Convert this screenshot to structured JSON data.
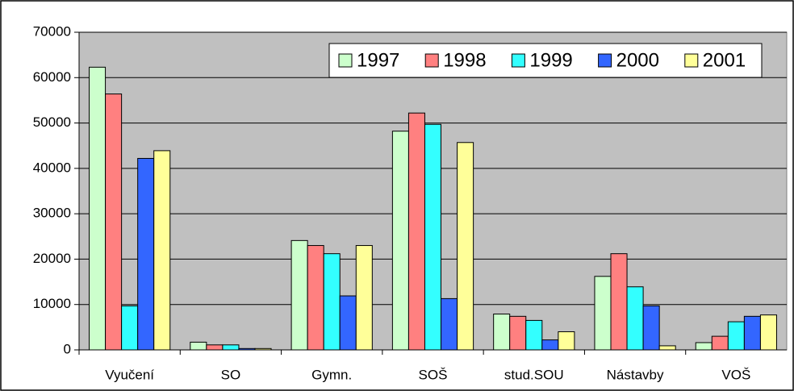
{
  "chart_data": {
    "type": "bar",
    "categories": [
      "Vyučení",
      "SO",
      "Gymn.",
      "SOŠ",
      "stud.SOU",
      "Nástavby",
      "VOŠ"
    ],
    "series": [
      {
        "name": "1997",
        "color": "#ccffcc",
        "values": [
          62300,
          1700,
          24100,
          48200,
          7900,
          16200,
          1600
        ]
      },
      {
        "name": "1998",
        "color": "#ff8080",
        "values": [
          56400,
          1100,
          23000,
          52200,
          7400,
          21200,
          3000
        ]
      },
      {
        "name": "1999",
        "color": "#33ffff",
        "values": [
          9700,
          1100,
          21200,
          49700,
          6500,
          13900,
          6200
        ]
      },
      {
        "name": "2000",
        "color": "#3366ff",
        "values": [
          42200,
          300,
          11900,
          11300,
          2200,
          9700,
          7400
        ]
      },
      {
        "name": "2001",
        "color": "#ffff99",
        "values": [
          43900,
          300,
          23000,
          45700,
          4000,
          900,
          7700
        ]
      }
    ],
    "ylim": [
      0,
      70000
    ],
    "yticks": [
      0,
      10000,
      20000,
      30000,
      40000,
      50000,
      60000,
      70000
    ],
    "grid": true,
    "legend": "top-right"
  }
}
